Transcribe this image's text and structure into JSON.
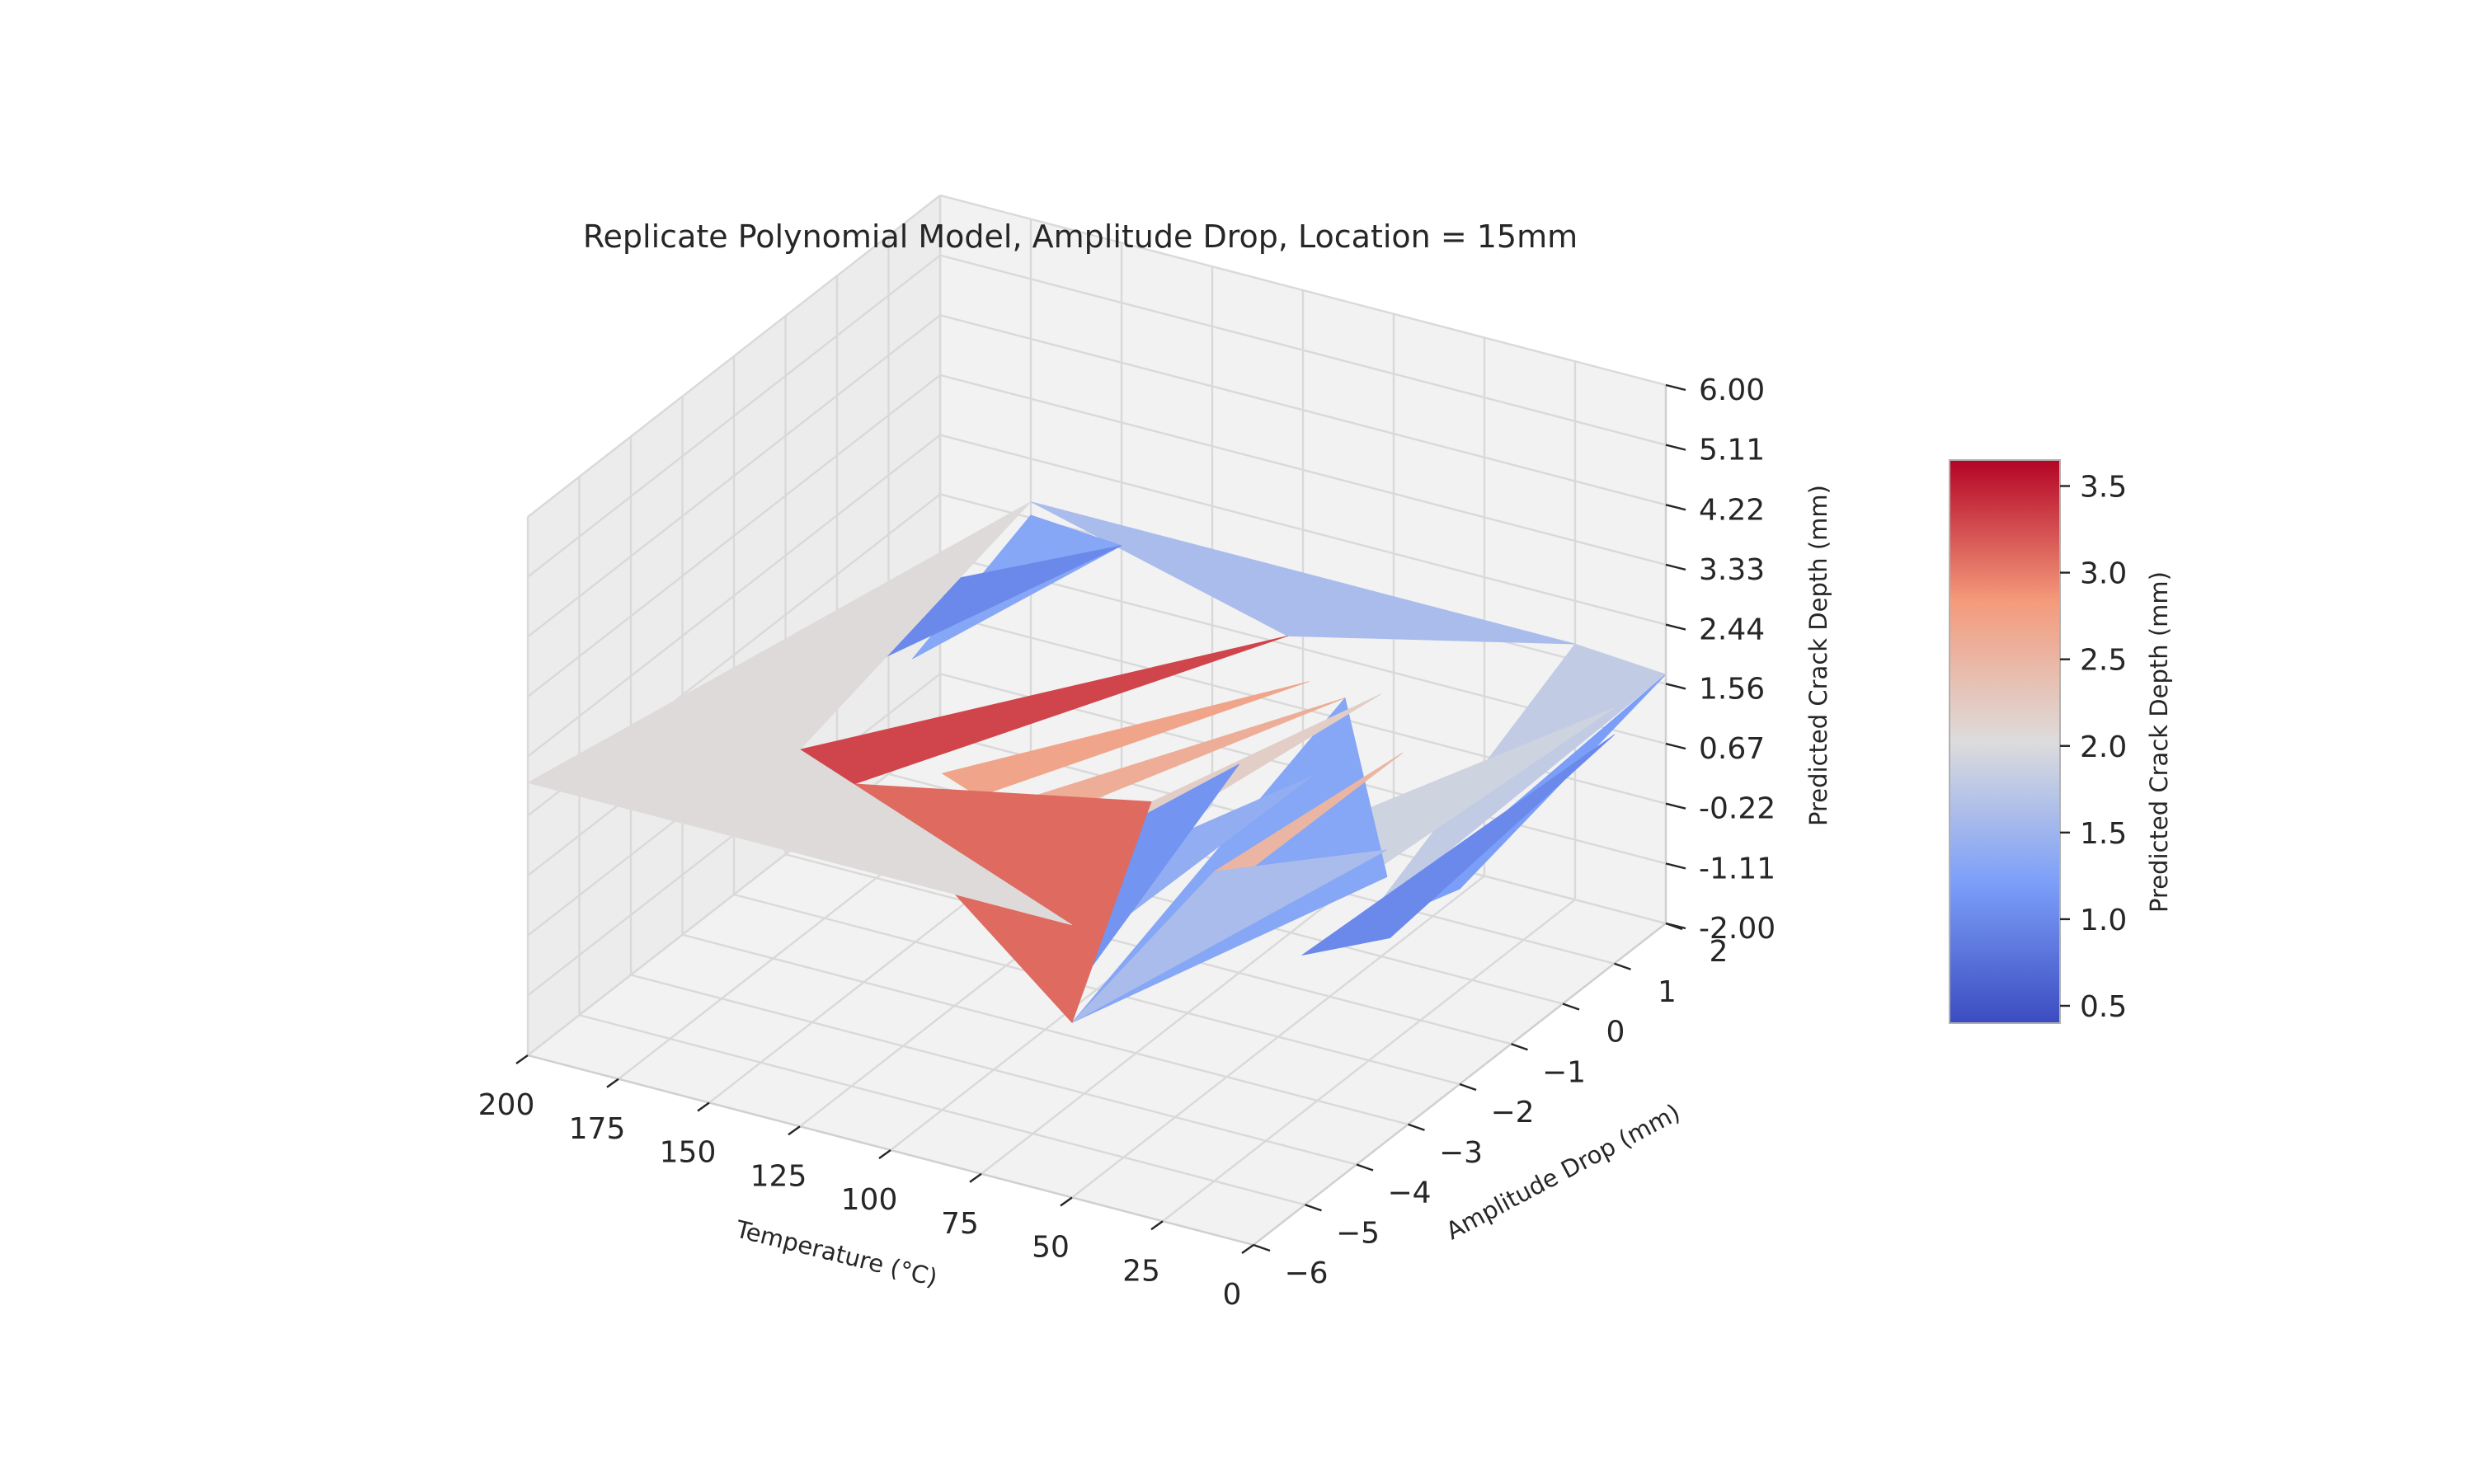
{
  "chart_data": {
    "type": "surface3d",
    "title": "Replicate Polynomial Model, Amplitude Drop, Location = 15mm",
    "xlabel": "Temperature ($^\\circ$C)",
    "ylabel": "Amplitude Drop (mm)",
    "zlabel": "Predicted Crack Depth (mm)",
    "x_ticks": [
      "200",
      "175",
      "150",
      "125",
      "100",
      "75",
      "50",
      "25",
      "0"
    ],
    "y_ticks": [
      "−6",
      "−5",
      "−4",
      "−3",
      "−2",
      "−1",
      "0",
      "1",
      "2"
    ],
    "z_ticks": [
      "-2.00",
      "-1.11",
      "-0.22",
      "0.67",
      "1.56",
      "2.44",
      "3.33",
      "4.22",
      "5.11",
      "6.00"
    ],
    "xlim": [
      0,
      200
    ],
    "ylim": [
      -6,
      2
    ],
    "zlim": [
      -2,
      6
    ],
    "colorbar": {
      "label": "Predicted Crack Depth (mm)",
      "ticks": [
        "0.5",
        "1.0",
        "1.5",
        "2.0",
        "2.5",
        "3.0",
        "3.5"
      ],
      "tick_values": [
        0.5,
        1.0,
        1.5,
        2.0,
        2.5,
        3.0,
        3.5
      ],
      "range": [
        0.4,
        3.65
      ],
      "colormap": "coolwarm"
    },
    "surface_facets": [
      {
        "pts": [
          [
            200,
            -6,
            2.05
          ],
          [
            125,
            -6,
            3.6
          ],
          [
            50,
            -6,
            2.05
          ]
        ],
        "c": 2.05
      },
      {
        "pts": [
          [
            200,
            -6,
            2.05
          ],
          [
            125,
            -6,
            3.6
          ],
          [
            175,
            2,
            1.8
          ]
        ],
        "c": 2.05
      },
      {
        "pts": [
          [
            125,
            -6,
            3.6
          ],
          [
            118,
            -6,
            3.4
          ],
          [
            50,
            -6,
            2.05
          ]
        ],
        "c": 3.6
      },
      {
        "pts": [
          [
            125,
            -6,
            3.6
          ],
          [
            110,
            -6,
            3.3
          ],
          [
            90,
            1,
            1.6
          ]
        ],
        "c": 3.3
      },
      {
        "pts": [
          [
            110,
            -6,
            3.3
          ],
          [
            50,
            -6,
            0.6
          ],
          [
            85,
            -2,
            1.0
          ]
        ],
        "c": 3.1
      },
      {
        "pts": [
          [
            100,
            -5,
            3.0
          ],
          [
            90,
            -5,
            2.8
          ],
          [
            70,
            0,
            1.8
          ]
        ],
        "c": 2.7
      },
      {
        "pts": [
          [
            90,
            -5,
            1.2
          ],
          [
            60,
            -5,
            0.6
          ],
          [
            75,
            -1,
            1.1
          ]
        ],
        "c": 1.1
      },
      {
        "pts": [
          [
            85,
            -5,
            2.7
          ],
          [
            75,
            -5,
            2.6
          ],
          [
            60,
            0,
            1.7
          ]
        ],
        "c": 2.6
      },
      {
        "pts": [
          [
            75,
            -5,
            1.5
          ],
          [
            60,
            -5,
            1.0
          ],
          [
            55,
            -1,
            1.2
          ]
        ],
        "c": 1.4
      },
      {
        "pts": [
          [
            70,
            -5,
            2.3
          ],
          [
            60,
            -5,
            2.1
          ],
          [
            50,
            0,
            1.9
          ]
        ],
        "c": 2.2
      },
      {
        "pts": [
          [
            50,
            -6,
            0.6
          ],
          [
            20,
            -2,
            0.8
          ],
          [
            60,
            0,
            1.7
          ]
        ],
        "c": 1.3
      },
      {
        "pts": [
          [
            50,
            -6,
            0.6
          ],
          [
            25,
            -5,
            2.6
          ],
          [
            20,
            -2,
            1.2
          ]
        ],
        "c": 1.6
      },
      {
        "pts": [
          [
            25,
            -5,
            2.6
          ],
          [
            20,
            -5,
            2.5
          ],
          [
            30,
            -1,
            1.9
          ]
        ],
        "c": 2.5
      },
      {
        "pts": [
          [
            25,
            -5,
            2.6
          ],
          [
            10,
            -3,
            1.6
          ],
          [
            0,
            1,
            1.8
          ]
        ],
        "c": 1.9
      },
      {
        "pts": [
          [
            15,
            -4,
            0.9
          ],
          [
            5,
            -3,
            0.7
          ],
          [
            0,
            1,
            1.4
          ]
        ],
        "c": 1.0
      },
      {
        "pts": [
          [
            175,
            2,
            1.6
          ],
          [
            150,
            2,
            1.5
          ],
          [
            165,
            -1,
            1.4
          ]
        ],
        "c": 1.3
      },
      {
        "pts": [
          [
            180,
            1,
            1.2
          ],
          [
            150,
            2,
            1.5
          ],
          [
            195,
            -3,
            0.9
          ]
        ],
        "c": 1.0
      },
      {
        "pts": [
          [
            175,
            2,
            1.8
          ],
          [
            25,
            2,
            1.8
          ],
          [
            90,
            1,
            1.6
          ]
        ],
        "c": 1.6
      },
      {
        "pts": [
          [
            25,
            2,
            1.8
          ],
          [
            0,
            2,
            1.7
          ],
          [
            10,
            -3,
            1.0
          ]
        ],
        "c": 1.8
      },
      {
        "pts": [
          [
            0,
            2,
            1.7
          ],
          [
            0,
            -2,
            0.9
          ],
          [
            10,
            -3,
            0.8
          ]
        ],
        "c": 1.2
      }
    ]
  }
}
